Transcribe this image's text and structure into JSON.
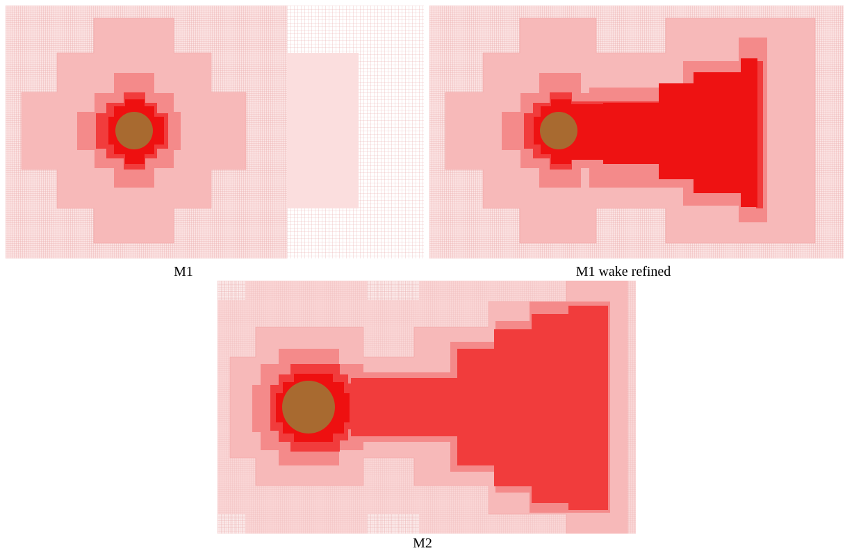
{
  "figure": {
    "panels": [
      {
        "id": "m1",
        "caption": "M1"
      },
      {
        "id": "m1w",
        "caption": "M1 wake refined"
      },
      {
        "id": "m2",
        "caption": "M2"
      }
    ]
  },
  "colors": {
    "background": "#ffffff",
    "grid_line": "#e8a0a0",
    "level_1": "#f7b9b9",
    "level_2": "#f48a8a",
    "level_3": "#f13c3c",
    "level_4": "#ee1010",
    "wake": "#ee1212",
    "cylinder": "#a86a30"
  }
}
